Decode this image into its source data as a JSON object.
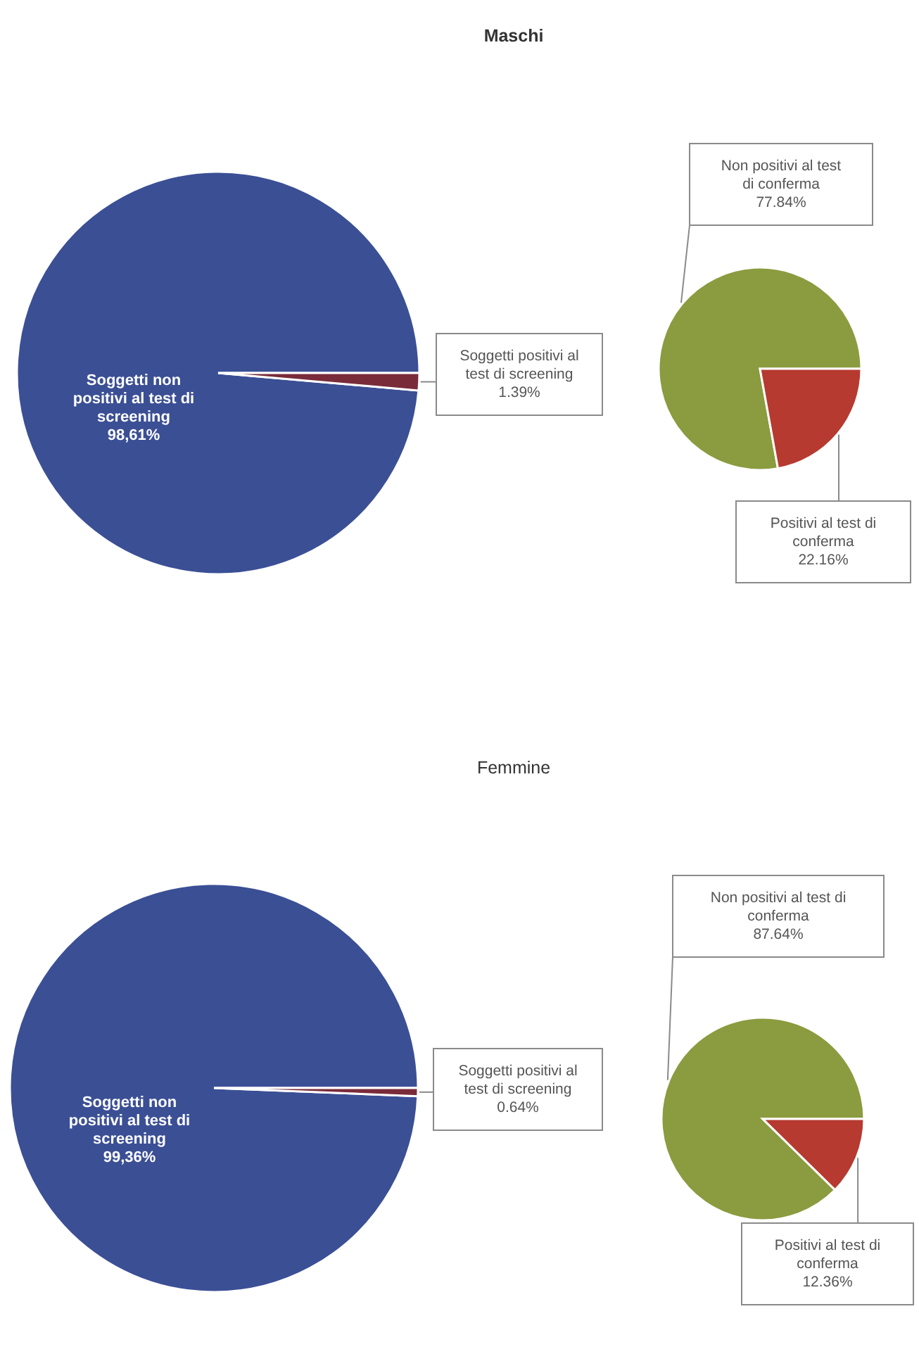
{
  "chart_data": [
    {
      "type": "pie",
      "title": "Maschi",
      "categories": [
        "Soggetti non positivi al test di screening",
        "Soggetti positivi al test di screening"
      ],
      "values": [
        98.61,
        1.39
      ],
      "colors": [
        "#3b4f95",
        "#7a2b3a"
      ],
      "value_labels": [
        "98,61%",
        "1.39%"
      ]
    },
    {
      "type": "pie",
      "categories": [
        "Non positivi al test di conferma",
        "Positivi al test di conferma"
      ],
      "values": [
        77.84,
        22.16
      ],
      "colors": [
        "#8b9b3f",
        "#b63a30"
      ],
      "value_labels": [
        "77.84%",
        "22.16%"
      ]
    },
    {
      "type": "pie",
      "title": "Femmine",
      "categories": [
        "Soggetti non positivi al test di screening",
        "Soggetti positivi al test di screening"
      ],
      "values": [
        99.36,
        0.64
      ],
      "colors": [
        "#3b4f95",
        "#7a2b3a"
      ],
      "value_labels": [
        "99,36%",
        "0.64%"
      ]
    },
    {
      "type": "pie",
      "categories": [
        "Non positivi al test di conferma",
        "Positivi al test di conferma"
      ],
      "values": [
        87.64,
        12.36
      ],
      "colors": [
        "#8b9b3f",
        "#b63a30"
      ],
      "value_labels": [
        "87.64%",
        "12.36%"
      ]
    }
  ]
}
